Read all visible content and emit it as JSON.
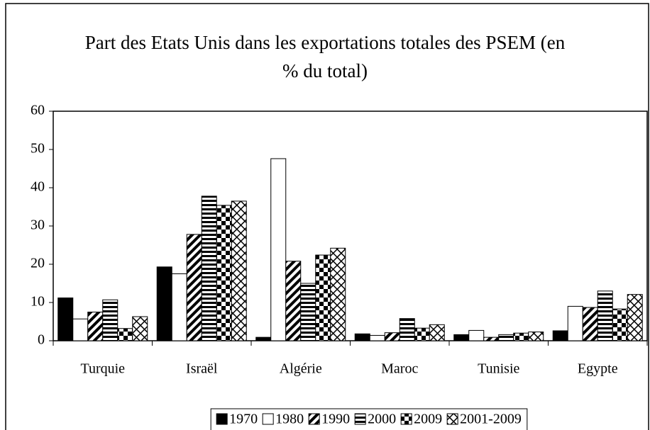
{
  "chart_data": {
    "type": "bar",
    "title": "Part des Etats Unis dans les exportations totales des PSEM (en % du total)",
    "categories": [
      "Turquie",
      "Israël",
      "Algérie",
      "Maroc",
      "Tunisie",
      "Egypte"
    ],
    "series": [
      {
        "name": "1970",
        "pattern": "solid",
        "values": [
          11.2,
          19.3,
          0.9,
          1.8,
          1.6,
          2.6
        ]
      },
      {
        "name": "1980",
        "pattern": "none",
        "values": [
          5.7,
          17.5,
          47.6,
          1.4,
          2.7,
          9.0
        ]
      },
      {
        "name": "1990",
        "pattern": "diagonal",
        "values": [
          7.5,
          27.8,
          20.8,
          2.1,
          0.9,
          8.7
        ]
      },
      {
        "name": "2000",
        "pattern": "horizontal",
        "values": [
          10.7,
          37.8,
          15.0,
          5.8,
          1.6,
          13.0
        ]
      },
      {
        "name": "2009",
        "pattern": "checker",
        "values": [
          3.2,
          35.4,
          22.4,
          3.3,
          2.0,
          8.3
        ]
      },
      {
        "name": "2001-2009",
        "pattern": "cross",
        "values": [
          6.3,
          36.5,
          24.2,
          4.2,
          2.3,
          12.1
        ]
      }
    ],
    "ylim": [
      0,
      60
    ],
    "yticks": [
      0,
      10,
      20,
      30,
      40,
      50,
      60
    ],
    "grid": false,
    "legend": "bottom"
  }
}
